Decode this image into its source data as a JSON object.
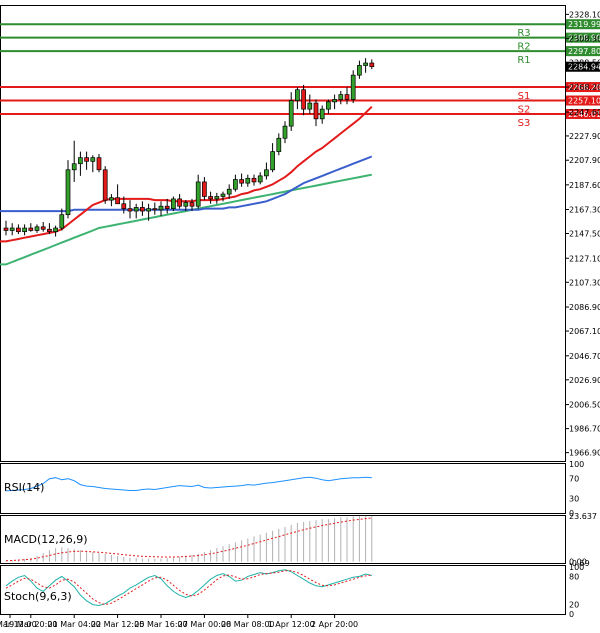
{
  "chart_data": {
    "type": "candlestick",
    "main": {
      "yticks": [
        "2328.10",
        "2308.30",
        "2288.50",
        "2268.20",
        "2247.60",
        "2227.90",
        "2207.90",
        "2187.60",
        "2167.30",
        "2147.50",
        "2127.10",
        "2107.30",
        "2086.90",
        "2067.10",
        "2046.70",
        "2026.90",
        "2006.50",
        "1986.70",
        "1966.90"
      ],
      "ylim": [
        1960,
        2335
      ],
      "current_price": "2284.94",
      "levels": [
        {
          "name": "R3",
          "value": "2319.99",
          "color": "#2e8b2e"
        },
        {
          "name": "R2",
          "value": "2308.90",
          "color": "#2e8b2e"
        },
        {
          "name": "R1",
          "value": "2297.80",
          "color": "#2e8b2e"
        },
        {
          "name": "S1",
          "value": "2268.20",
          "color": "#e31a1a"
        },
        {
          "name": "S2",
          "value": "2257.10",
          "color": "#e31a1a"
        },
        {
          "name": "S3",
          "value": "2246.01",
          "color": "#e31a1a"
        }
      ],
      "candles": [
        {
          "o": 2152,
          "h": 2158,
          "l": 2146,
          "c": 2150
        },
        {
          "o": 2150,
          "h": 2156,
          "l": 2146,
          "c": 2152
        },
        {
          "o": 2152,
          "h": 2155,
          "l": 2147,
          "c": 2149
        },
        {
          "o": 2149,
          "h": 2155,
          "l": 2146,
          "c": 2152
        },
        {
          "o": 2152,
          "h": 2156,
          "l": 2149,
          "c": 2150
        },
        {
          "o": 2150,
          "h": 2155,
          "l": 2148,
          "c": 2153
        },
        {
          "o": 2153,
          "h": 2157,
          "l": 2149,
          "c": 2151
        },
        {
          "o": 2151,
          "h": 2156,
          "l": 2147,
          "c": 2149
        },
        {
          "o": 2149,
          "h": 2154,
          "l": 2145,
          "c": 2152
        },
        {
          "o": 2152,
          "h": 2168,
          "l": 2150,
          "c": 2163
        },
        {
          "o": 2163,
          "h": 2208,
          "l": 2160,
          "c": 2200
        },
        {
          "o": 2200,
          "h": 2224,
          "l": 2190,
          "c": 2205
        },
        {
          "o": 2205,
          "h": 2215,
          "l": 2195,
          "c": 2210
        },
        {
          "o": 2210,
          "h": 2215,
          "l": 2200,
          "c": 2207
        },
        {
          "o": 2207,
          "h": 2212,
          "l": 2198,
          "c": 2210
        },
        {
          "o": 2210,
          "h": 2213,
          "l": 2198,
          "c": 2200
        },
        {
          "o": 2200,
          "h": 2203,
          "l": 2172,
          "c": 2175
        },
        {
          "o": 2175,
          "h": 2180,
          "l": 2170,
          "c": 2177
        },
        {
          "o": 2177,
          "h": 2188,
          "l": 2172,
          "c": 2172
        },
        {
          "o": 2172,
          "h": 2178,
          "l": 2164,
          "c": 2168
        },
        {
          "o": 2168,
          "h": 2175,
          "l": 2160,
          "c": 2166
        },
        {
          "o": 2166,
          "h": 2172,
          "l": 2160,
          "c": 2169
        },
        {
          "o": 2169,
          "h": 2174,
          "l": 2162,
          "c": 2166
        },
        {
          "o": 2166,
          "h": 2172,
          "l": 2158,
          "c": 2168
        },
        {
          "o": 2168,
          "h": 2173,
          "l": 2163,
          "c": 2167
        },
        {
          "o": 2167,
          "h": 2174,
          "l": 2162,
          "c": 2170
        },
        {
          "o": 2170,
          "h": 2176,
          "l": 2164,
          "c": 2168
        },
        {
          "o": 2168,
          "h": 2178,
          "l": 2166,
          "c": 2176
        },
        {
          "o": 2176,
          "h": 2180,
          "l": 2168,
          "c": 2170
        },
        {
          "o": 2170,
          "h": 2175,
          "l": 2166,
          "c": 2173
        },
        {
          "o": 2173,
          "h": 2176,
          "l": 2166,
          "c": 2170
        },
        {
          "o": 2170,
          "h": 2196,
          "l": 2168,
          "c": 2190
        },
        {
          "o": 2190,
          "h": 2194,
          "l": 2175,
          "c": 2178
        },
        {
          "o": 2178,
          "h": 2182,
          "l": 2172,
          "c": 2176
        },
        {
          "o": 2176,
          "h": 2181,
          "l": 2172,
          "c": 2178
        },
        {
          "o": 2178,
          "h": 2182,
          "l": 2174,
          "c": 2180
        },
        {
          "o": 2180,
          "h": 2188,
          "l": 2176,
          "c": 2184
        },
        {
          "o": 2184,
          "h": 2196,
          "l": 2182,
          "c": 2192
        },
        {
          "o": 2192,
          "h": 2197,
          "l": 2186,
          "c": 2189
        },
        {
          "o": 2189,
          "h": 2196,
          "l": 2186,
          "c": 2193
        },
        {
          "o": 2193,
          "h": 2196,
          "l": 2187,
          "c": 2190
        },
        {
          "o": 2190,
          "h": 2198,
          "l": 2188,
          "c": 2195
        },
        {
          "o": 2195,
          "h": 2206,
          "l": 2192,
          "c": 2200
        },
        {
          "o": 2200,
          "h": 2222,
          "l": 2198,
          "c": 2215
        },
        {
          "o": 2215,
          "h": 2230,
          "l": 2212,
          "c": 2226
        },
        {
          "o": 2226,
          "h": 2240,
          "l": 2222,
          "c": 2236
        },
        {
          "o": 2236,
          "h": 2264,
          "l": 2232,
          "c": 2257
        },
        {
          "o": 2257,
          "h": 2268,
          "l": 2250,
          "c": 2266
        },
        {
          "o": 2266,
          "h": 2270,
          "l": 2245,
          "c": 2250
        },
        {
          "o": 2250,
          "h": 2262,
          "l": 2246,
          "c": 2255
        },
        {
          "o": 2255,
          "h": 2258,
          "l": 2236,
          "c": 2242
        },
        {
          "o": 2242,
          "h": 2253,
          "l": 2238,
          "c": 2250
        },
        {
          "o": 2250,
          "h": 2258,
          "l": 2246,
          "c": 2256
        },
        {
          "o": 2256,
          "h": 2262,
          "l": 2250,
          "c": 2258
        },
        {
          "o": 2258,
          "h": 2265,
          "l": 2254,
          "c": 2262
        },
        {
          "o": 2262,
          "h": 2268,
          "l": 2254,
          "c": 2258
        },
        {
          "o": 2258,
          "h": 2282,
          "l": 2255,
          "c": 2278
        },
        {
          "o": 2278,
          "h": 2290,
          "l": 2275,
          "c": 2286
        },
        {
          "o": 2286,
          "h": 2292,
          "l": 2280,
          "c": 2288
        },
        {
          "o": 2288,
          "h": 2291,
          "l": 2283,
          "c": 2285
        }
      ],
      "ma_red": [
        2141,
        2142,
        2143,
        2144,
        2145,
        2146,
        2147,
        2148,
        2149,
        2151,
        2155,
        2159,
        2163,
        2167,
        2171,
        2173,
        2175,
        2176,
        2176,
        2176,
        2176,
        2176,
        2176,
        2176,
        2175,
        2175,
        2175,
        2174,
        2174,
        2174,
        2174,
        2175,
        2175,
        2175,
        2175,
        2176,
        2177,
        2178,
        2180,
        2181,
        2183,
        2184,
        2186,
        2188,
        2191,
        2194,
        2198,
        2203,
        2207,
        2211,
        2215,
        2218,
        2222,
        2226,
        2230,
        2234,
        2238,
        2242,
        2247,
        2252
      ],
      "ma_blue": [
        2166,
        2166,
        2166,
        2166,
        2166,
        2166,
        2166,
        2166,
        2166,
        2166,
        2166,
        2167,
        2167,
        2167,
        2167,
        2167,
        2167,
        2167,
        2167,
        2167,
        2167,
        2167,
        2167,
        2167,
        2167,
        2167,
        2167,
        2167,
        2167,
        2167,
        2167,
        2167,
        2168,
        2168,
        2168,
        2168,
        2169,
        2169,
        2170,
        2171,
        2172,
        2173,
        2174,
        2176,
        2178,
        2180,
        2183,
        2186,
        2189,
        2191,
        2193,
        2195,
        2197,
        2199,
        2201,
        2203,
        2205,
        2207,
        2209,
        2211
      ],
      "ma_green": [
        2122,
        2124,
        2126,
        2128,
        2130,
        2132,
        2134,
        2136,
        2138,
        2140,
        2142,
        2144,
        2146,
        2148,
        2150,
        2152,
        2153,
        2154,
        2155,
        2156,
        2157,
        2158,
        2159,
        2160,
        2161,
        2162,
        2163,
        2164,
        2165,
        2166,
        2167,
        2168,
        2169,
        2170,
        2171,
        2172,
        2173,
        2174,
        2175,
        2176,
        2177,
        2178,
        2179,
        2180,
        2181,
        2182,
        2183,
        2184,
        2185,
        2186,
        2187,
        2188,
        2189,
        2190,
        2191,
        2192,
        2193,
        2194,
        2195,
        2196
      ]
    },
    "rsi": {
      "label": "RSI(14)",
      "yticks": [
        "100",
        "70",
        "30",
        "0"
      ],
      "values": [
        45,
        46,
        47,
        48,
        50,
        55,
        60,
        70,
        72,
        68,
        70,
        66,
        58,
        55,
        54,
        52,
        50,
        49,
        48,
        47,
        46,
        46,
        48,
        49,
        48,
        50,
        52,
        54,
        56,
        55,
        54,
        57,
        52,
        51,
        52,
        53,
        54,
        55,
        56,
        58,
        57,
        59,
        61,
        62,
        64,
        66,
        68,
        70,
        72,
        73,
        71,
        68,
        66,
        68,
        70,
        71,
        72,
        72,
        73,
        72
      ]
    },
    "macd": {
      "label": "MACD(12,26,9)",
      "yticks": [
        "23.637",
        "0.00",
        "-0.69"
      ],
      "hist": [
        0.5,
        0.8,
        1,
        1.5,
        2,
        3,
        4.5,
        6,
        7,
        7.5,
        7,
        6.5,
        6,
        5.5,
        5,
        4.5,
        4,
        3.5,
        3,
        2.5,
        2,
        1.8,
        1.6,
        1.5,
        1.5,
        1.6,
        1.8,
        2,
        2.5,
        3,
        3.5,
        4,
        5,
        6,
        7,
        8,
        9,
        10,
        11,
        12,
        13,
        14,
        15,
        16,
        17,
        18,
        19,
        20,
        20.5,
        21,
        21.5,
        22,
        22,
        22.5,
        23,
        23,
        23.5,
        23.6,
        23.6,
        23.6
      ],
      "signal": [
        0.5,
        0.6,
        0.8,
        1,
        1.3,
        1.8,
        2.5,
        3.2,
        4,
        4.6,
        5,
        5.3,
        5.4,
        5.3,
        5.1,
        4.9,
        4.6,
        4.3,
        4,
        3.6,
        3.3,
        3,
        2.8,
        2.6,
        2.5,
        2.4,
        2.4,
        2.4,
        2.5,
        2.7,
        2.9,
        3.2,
        3.6,
        4.1,
        4.7,
        5.4,
        6.1,
        6.9,
        7.7,
        8.5,
        9.4,
        10.3,
        11.2,
        12.1,
        13,
        13.9,
        14.8,
        15.7,
        16.5,
        17.3,
        18,
        18.7,
        19.3,
        19.9,
        20.5,
        21,
        21.5,
        21.9,
        22.3,
        22.6
      ]
    },
    "stoch": {
      "label": "Stoch(9,6,3)",
      "yticks": [
        "100",
        "80",
        "20",
        "0"
      ],
      "k": [
        60,
        70,
        78,
        82,
        70,
        55,
        48,
        60,
        72,
        80,
        70,
        58,
        40,
        28,
        20,
        18,
        22,
        30,
        38,
        45,
        55,
        62,
        70,
        78,
        82,
        75,
        60,
        48,
        40,
        35,
        40,
        50,
        62,
        74,
        82,
        86,
        80,
        70,
        72,
        80,
        84,
        88,
        85,
        88,
        92,
        94,
        90,
        82,
        74,
        66,
        60,
        58,
        62,
        66,
        70,
        74,
        78,
        80,
        85,
        82
      ],
      "d": [
        55,
        62,
        70,
        76,
        74,
        66,
        58,
        55,
        62,
        72,
        74,
        68,
        56,
        44,
        32,
        24,
        20,
        23,
        30,
        38,
        46,
        54,
        62,
        70,
        77,
        78,
        72,
        61,
        50,
        42,
        38,
        42,
        51,
        62,
        73,
        81,
        83,
        79,
        74,
        75,
        79,
        84,
        86,
        87,
        89,
        92,
        92,
        88,
        82,
        74,
        67,
        61,
        60,
        62,
        66,
        70,
        74,
        78,
        81,
        83
      ]
    },
    "xticks": [
      {
        "label": "19 Mar 12:00",
        "index": 0
      },
      {
        "label": "19 Mar 20:00",
        "index": 4
      },
      {
        "label": "21 Mar 04:00",
        "index": 11
      },
      {
        "label": "22 Mar 12:00",
        "index": 18
      },
      {
        "label": "25 Mar 16:00",
        "index": 25
      },
      {
        "label": "27 Mar 00:00",
        "index": 32
      },
      {
        "label": "28 Mar 08:00",
        "index": 39
      },
      {
        "label": "1 Apr 12:00",
        "index": 46
      },
      {
        "label": "2 Apr 20:00",
        "index": 53
      }
    ]
  }
}
